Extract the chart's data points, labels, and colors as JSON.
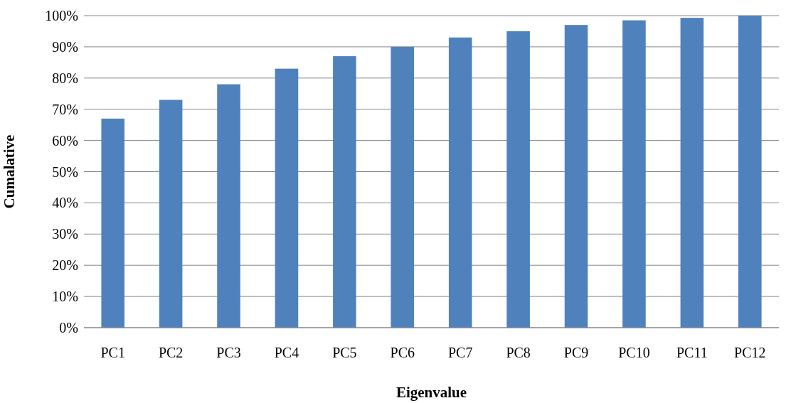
{
  "chart_data": {
    "type": "bar",
    "xlabel": "Eigenvalue",
    "ylabel": "Cumalative",
    "categories": [
      "PC1",
      "PC2",
      "PC3",
      "PC4",
      "PC5",
      "PC6",
      "PC7",
      "PC8",
      "PC9",
      "PC10",
      "PC11",
      "PC12"
    ],
    "values": [
      67,
      73,
      78,
      83,
      87,
      90,
      93,
      95,
      97,
      98.5,
      99.3,
      100
    ],
    "color": "#4f81bd",
    "ylim": [
      0,
      100
    ],
    "yticks": [
      {
        "value": 0,
        "label": "0%"
      },
      {
        "value": 10,
        "label": "10%"
      },
      {
        "value": 20,
        "label": "20%"
      },
      {
        "value": 30,
        "label": "30%"
      },
      {
        "value": 40,
        "label": "40%"
      },
      {
        "value": 50,
        "label": "50%"
      },
      {
        "value": 60,
        "label": "60%"
      },
      {
        "value": 70,
        "label": "70%"
      },
      {
        "value": 80,
        "label": "80%"
      },
      {
        "value": 90,
        "label": "90%"
      },
      {
        "value": 100,
        "label": "100%"
      }
    ],
    "grid": "y"
  }
}
